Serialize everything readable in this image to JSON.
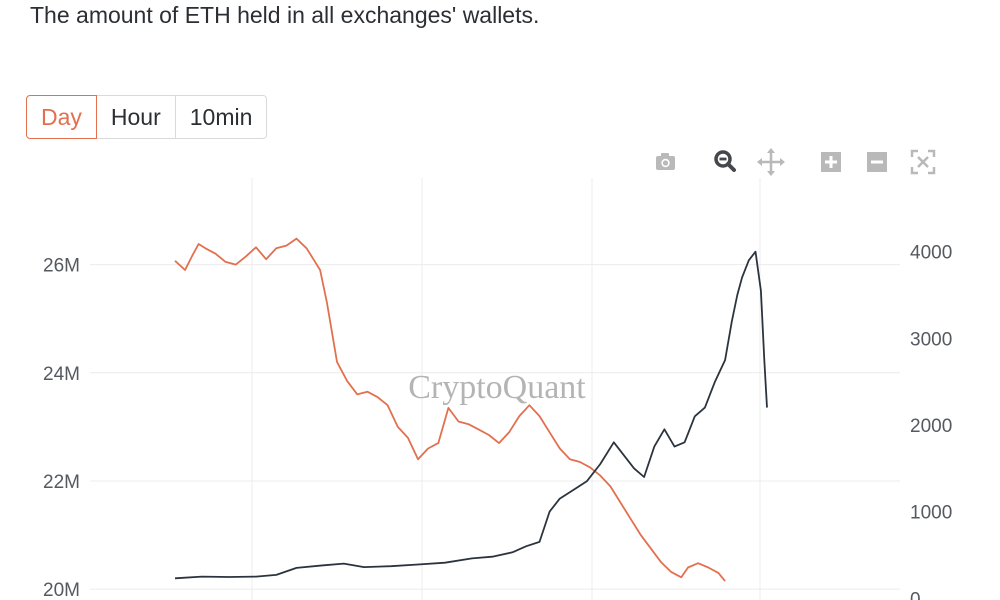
{
  "header": {
    "subtitle": "The amount of ETH held in all exchanges' wallets."
  },
  "tabs": [
    {
      "label": "Day",
      "active": true
    },
    {
      "label": "Hour",
      "active": false
    },
    {
      "label": "10min",
      "active": false
    }
  ],
  "modebar": [
    {
      "icon": "camera-icon",
      "action": "download-plot"
    },
    {
      "icon": "zoom-icon",
      "action": "zoom",
      "active": true
    },
    {
      "icon": "pan-icon",
      "action": "pan"
    },
    {
      "icon": "plus-icon",
      "action": "zoom-in"
    },
    {
      "icon": "minus-icon",
      "action": "zoom-out"
    },
    {
      "icon": "autoscale-icon",
      "action": "autoscale"
    }
  ],
  "watermark": "CryptoQuant",
  "colors": {
    "accent": "#e2704f",
    "reserve_line": "#e2704f",
    "price_line": "#2b343d",
    "grid": "#ececec",
    "tick_text": "#555a60"
  },
  "chart_data": {
    "type": "line",
    "title": "",
    "grid": true,
    "legend": "none",
    "x": {
      "range": [
        0,
        100
      ],
      "ticks": []
    },
    "y_left": {
      "range": [
        19.8,
        27.6
      ],
      "ticks": [
        20,
        22,
        24,
        26
      ],
      "tick_labels": [
        "20M",
        "22M",
        "24M",
        "26M"
      ]
    },
    "y_right": {
      "range": [
        -20,
        4850
      ],
      "ticks": [
        0,
        1000,
        2000,
        3000,
        4000
      ],
      "tick_labels": [
        "0",
        "1000",
        "2000",
        "3000",
        "4000"
      ]
    },
    "series": [
      {
        "axis": "left",
        "color": "#e2704f",
        "points": [
          [
            0,
            26.07
          ],
          [
            1.5,
            25.9
          ],
          [
            2.5,
            26.15
          ],
          [
            3.5,
            26.38
          ],
          [
            4.5,
            26.3
          ],
          [
            6,
            26.2
          ],
          [
            7.5,
            26.05
          ],
          [
            9,
            26.0
          ],
          [
            10.5,
            26.15
          ],
          [
            12,
            26.32
          ],
          [
            13.5,
            26.1
          ],
          [
            15,
            26.3
          ],
          [
            16.5,
            26.35
          ],
          [
            18,
            26.48
          ],
          [
            19.5,
            26.3
          ],
          [
            20.5,
            26.1
          ],
          [
            21.5,
            25.9
          ],
          [
            22.5,
            25.3
          ],
          [
            24,
            24.2
          ],
          [
            25.5,
            23.85
          ],
          [
            27,
            23.6
          ],
          [
            28.5,
            23.65
          ],
          [
            30,
            23.55
          ],
          [
            31.5,
            23.4
          ],
          [
            33,
            23.0
          ],
          [
            34.5,
            22.8
          ],
          [
            36,
            22.4
          ],
          [
            37.5,
            22.6
          ],
          [
            39,
            22.7
          ],
          [
            40.5,
            23.35
          ],
          [
            42,
            23.1
          ],
          [
            43.5,
            23.05
          ],
          [
            45,
            22.95
          ],
          [
            46.5,
            22.85
          ],
          [
            48,
            22.7
          ],
          [
            49.5,
            22.9
          ],
          [
            51,
            23.2
          ],
          [
            52.5,
            23.4
          ],
          [
            54,
            23.2
          ],
          [
            55.5,
            22.9
          ],
          [
            57,
            22.6
          ],
          [
            58.5,
            22.4
          ],
          [
            60,
            22.35
          ],
          [
            61.5,
            22.25
          ],
          [
            63,
            22.1
          ],
          [
            64.5,
            21.9
          ],
          [
            66,
            21.6
          ],
          [
            67.5,
            21.3
          ],
          [
            69,
            21.0
          ],
          [
            70.5,
            20.75
          ],
          [
            72,
            20.5
          ],
          [
            73.5,
            20.32
          ],
          [
            75,
            20.22
          ],
          [
            76,
            20.4
          ],
          [
            77.5,
            20.48
          ],
          [
            79,
            20.4
          ],
          [
            80.5,
            20.3
          ],
          [
            81.5,
            20.15
          ]
        ]
      },
      {
        "axis": "right",
        "color": "#2b343d",
        "points": [
          [
            0,
            230
          ],
          [
            4,
            250
          ],
          [
            8,
            245
          ],
          [
            12,
            250
          ],
          [
            15,
            270
          ],
          [
            18,
            350
          ],
          [
            22,
            380
          ],
          [
            25,
            400
          ],
          [
            28,
            360
          ],
          [
            32,
            370
          ],
          [
            36,
            390
          ],
          [
            40,
            410
          ],
          [
            44,
            460
          ],
          [
            47,
            480
          ],
          [
            50,
            530
          ],
          [
            52,
            600
          ],
          [
            54,
            650
          ],
          [
            55.5,
            1000
          ],
          [
            57,
            1150
          ],
          [
            59,
            1250
          ],
          [
            61,
            1350
          ],
          [
            63,
            1550
          ],
          [
            65,
            1800
          ],
          [
            66.5,
            1650
          ],
          [
            68,
            1500
          ],
          [
            69.5,
            1400
          ],
          [
            71,
            1750
          ],
          [
            72.5,
            1950
          ],
          [
            74,
            1750
          ],
          [
            75.5,
            1800
          ],
          [
            77,
            2100
          ],
          [
            78.5,
            2200
          ],
          [
            80,
            2500
          ],
          [
            81.5,
            2750
          ],
          [
            82.5,
            3200
          ],
          [
            83.3,
            3500
          ],
          [
            84,
            3700
          ],
          [
            85,
            3900
          ],
          [
            86,
            4000
          ],
          [
            86.8,
            3550
          ],
          [
            87.3,
            2750
          ],
          [
            87.7,
            2200
          ]
        ]
      }
    ]
  }
}
